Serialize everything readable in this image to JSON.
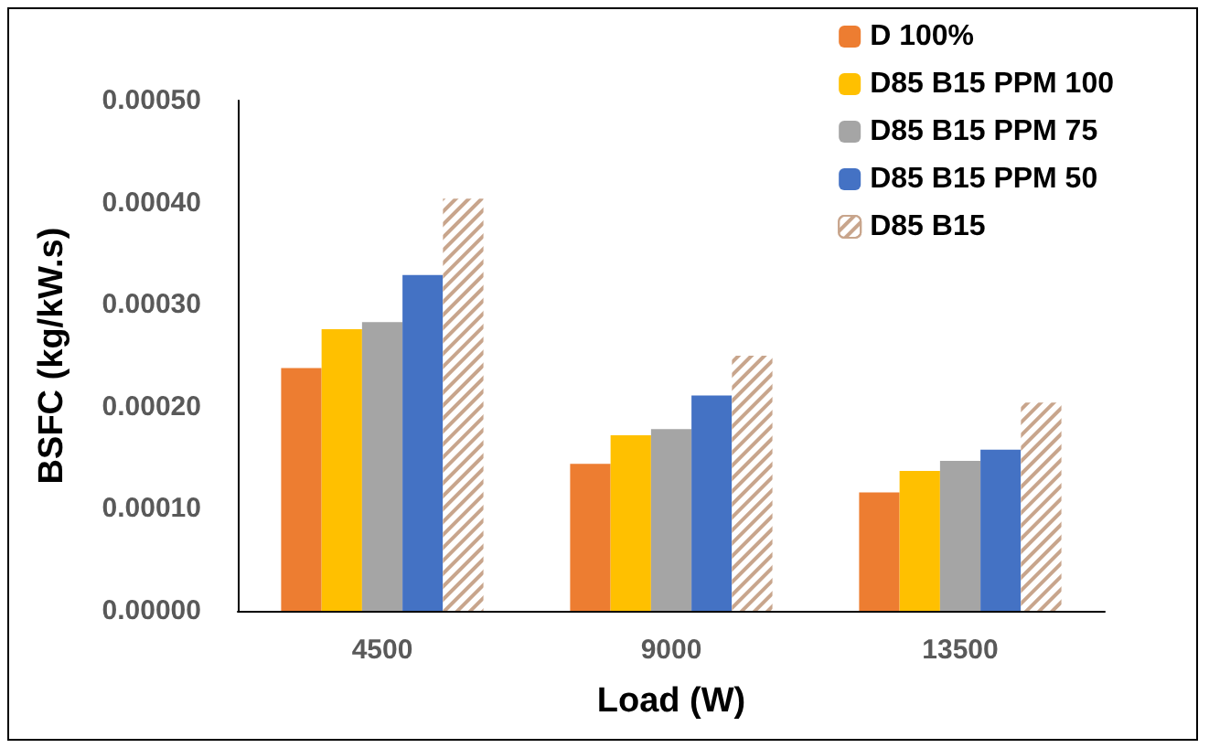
{
  "chart_data": {
    "type": "bar",
    "xlabel": "Load (W)",
    "ylabel": "BSFC (kg/kW.s)",
    "categories": [
      "4500",
      "9000",
      "13500"
    ],
    "series": [
      {
        "name": "D 100%",
        "color": "#ed7d31",
        "values": [
          0.000238,
          0.000144,
          0.000116
        ]
      },
      {
        "name": "D85 B15 PPM 100",
        "color": "#ffc000",
        "values": [
          0.000276,
          0.000172,
          0.000137
        ]
      },
      {
        "name": "D85 B15 PPM 75",
        "color": "#a5a5a5",
        "values": [
          0.000283,
          0.000178,
          0.000147
        ]
      },
      {
        "name": "D85 B15 PPM 50",
        "color": "#4472c4",
        "values": [
          0.000329,
          0.000211,
          0.000158
        ]
      },
      {
        "name": "D85 B15",
        "color": "#c8a58c",
        "values": [
          0.000404,
          0.00025,
          0.000204
        ]
      }
    ],
    "ylim": [
      0,
      0.0005
    ],
    "yticks": [
      {
        "value": 0,
        "label": "0.00000"
      },
      {
        "value": 0.0001,
        "label": "0.00010"
      },
      {
        "value": 0.0002,
        "label": "0.00020"
      },
      {
        "value": 0.0003,
        "label": "0.00030"
      },
      {
        "value": 0.0004,
        "label": "0.00040"
      },
      {
        "value": 0.0005,
        "label": "0.00050"
      }
    ],
    "grid": false,
    "legend": "top right"
  }
}
